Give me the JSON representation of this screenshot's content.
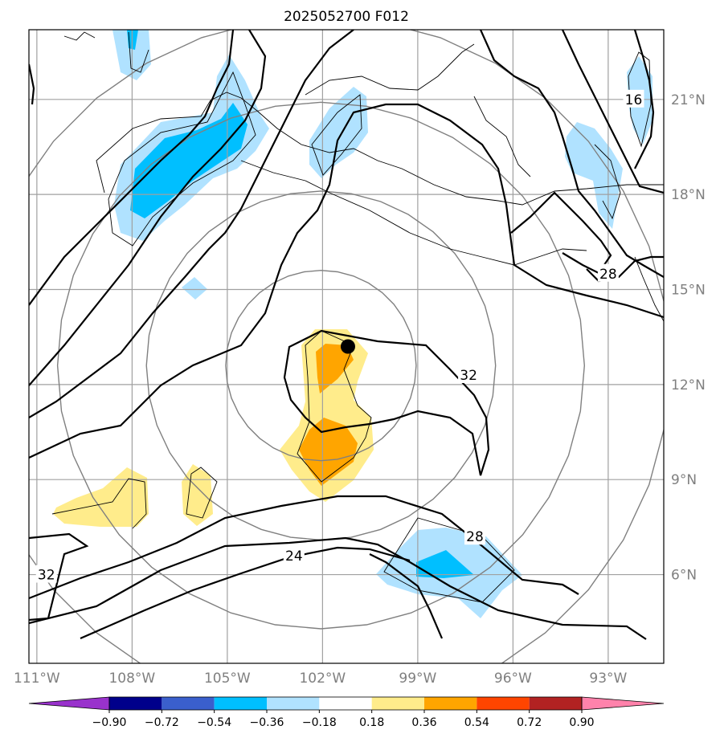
{
  "title": "2025052700 F012",
  "map": {
    "lon_range": [
      -111.25,
      -91.25
    ],
    "lat_range": [
      3.2,
      23.2
    ],
    "lon_ticks": [
      {
        "value": -111,
        "label": "111°W"
      },
      {
        "value": -108,
        "label": "108°W"
      },
      {
        "value": -105,
        "label": "105°W"
      },
      {
        "value": -102,
        "label": "102°W"
      },
      {
        "value": -99,
        "label": "99°W"
      },
      {
        "value": -96,
        "label": "96°W"
      },
      {
        "value": -93,
        "label": "93°W"
      }
    ],
    "lat_ticks": [
      {
        "value": 6,
        "label": "6°N"
      },
      {
        "value": 9,
        "label": "9°N"
      },
      {
        "value": 12,
        "label": "12°N"
      },
      {
        "value": 15,
        "label": "15°N"
      },
      {
        "value": 18,
        "label": "18°N"
      },
      {
        "value": 21,
        "label": "21°N"
      }
    ],
    "storm_center": {
      "lon": -101.2,
      "lat": 13.2
    },
    "range_ring_radii_deg": [
      3,
      5.5,
      8.3,
      11
    ],
    "contour_labels": [
      {
        "text": "32",
        "lon": -97.4,
        "lat": 12.3
      },
      {
        "text": "28",
        "lon": -97.2,
        "lat": 7.2
      },
      {
        "text": "24",
        "lon": -102.9,
        "lat": 6.6
      },
      {
        "text": "32",
        "lon": -110.7,
        "lat": 6.0
      },
      {
        "text": "28",
        "lon": -93.0,
        "lat": 15.5
      },
      {
        "text": "16",
        "lon": -92.2,
        "lat": 21.0
      }
    ]
  },
  "colorbar": {
    "tick_labels": [
      "−0.90",
      "−0.72",
      "−0.54",
      "−0.36",
      "−0.18",
      "0.18",
      "0.36",
      "0.54",
      "0.72",
      "0.90"
    ],
    "colors": [
      "#9932cc",
      "#00008b",
      "#3a5fcd",
      "#00bfff",
      "#b0e2ff",
      "#ffffff",
      "#ffec8b",
      "#ffa500",
      "#ff4500",
      "#b22222",
      "#ff82ab"
    ]
  }
}
